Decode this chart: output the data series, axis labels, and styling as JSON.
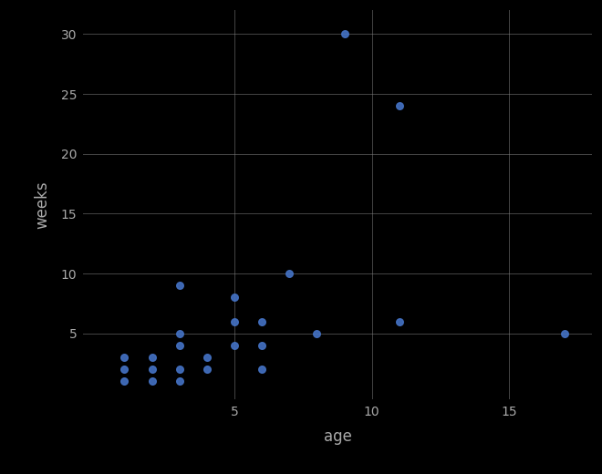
{
  "x": [
    1,
    1,
    1,
    2,
    2,
    2,
    3,
    3,
    3,
    3,
    3,
    4,
    4,
    5,
    5,
    5,
    6,
    6,
    6,
    7,
    8,
    9,
    11,
    11,
    17
  ],
  "y": [
    3,
    2,
    1,
    3,
    2,
    1,
    9,
    5,
    4,
    2,
    1,
    3,
    2,
    8,
    6,
    4,
    6,
    4,
    2,
    10,
    5,
    30,
    24,
    6,
    5
  ],
  "dot_color": "#4472C4",
  "dot_size": 30,
  "dot_alpha": 0.9,
  "xlabel": "age",
  "ylabel": "weeks",
  "xlim": [
    -0.5,
    18
  ],
  "ylim": [
    -0.5,
    32
  ],
  "xticks": [
    5,
    10,
    15
  ],
  "yticks": [
    5,
    10,
    15,
    20,
    25,
    30
  ],
  "grid_color": "#888888",
  "bg_color": "#000000",
  "axes_facecolor": "#000000",
  "label_color": "#aaaaaa",
  "tick_color": "#aaaaaa",
  "xlabel_fontsize": 12,
  "ylabel_fontsize": 12,
  "tick_fontsize": 10,
  "grid_alpha": 0.5,
  "grid_linewidth": 0.7
}
